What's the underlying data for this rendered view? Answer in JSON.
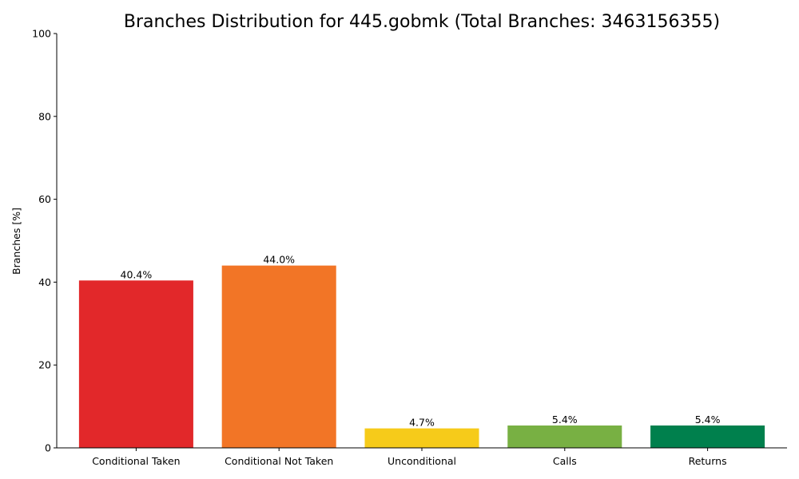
{
  "chart_data": {
    "type": "bar",
    "title": "Branches Distribution for 445.gobmk (Total Branches: 3463156355)",
    "xlabel": "",
    "ylabel": "Branches [%]",
    "ylim": [
      0,
      100
    ],
    "yticks": [
      0,
      20,
      40,
      60,
      80,
      100
    ],
    "grid": false,
    "categories": [
      "Conditional Taken",
      "Conditional Not Taken",
      "Unconditional",
      "Calls",
      "Returns"
    ],
    "values": [
      40.4,
      44.0,
      4.7,
      5.4,
      5.4
    ],
    "data_labels": [
      "40.4%",
      "44.0%",
      "4.7%",
      "5.4%",
      "5.4%"
    ],
    "colors": [
      "#e2282a",
      "#f27526",
      "#f6cb1a",
      "#78b043",
      "#00804d"
    ]
  }
}
